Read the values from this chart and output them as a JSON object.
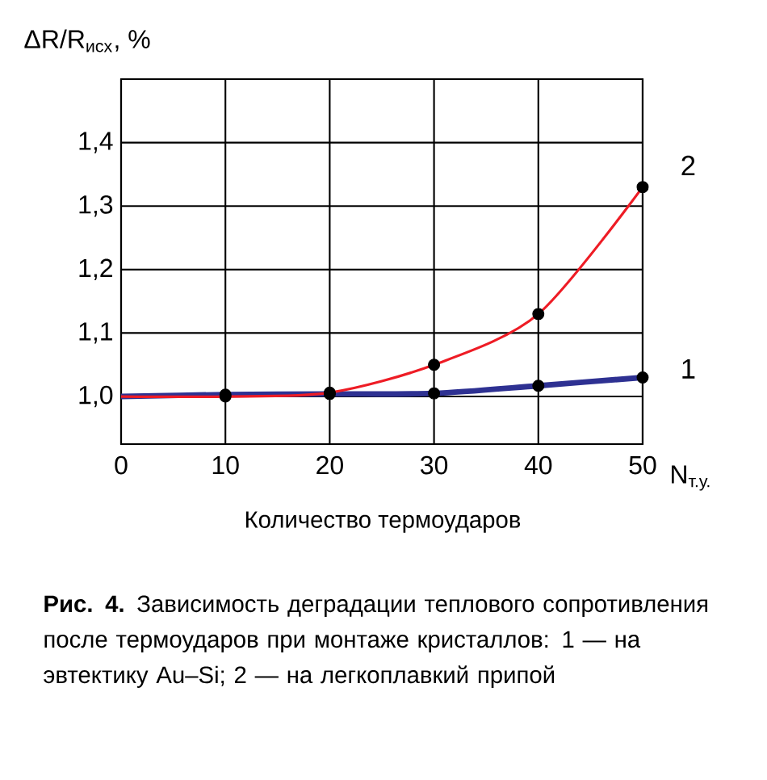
{
  "chart_data": {
    "type": "line",
    "ylabel": "ΔR/R$_{исх}$, %",
    "xlabel": "Количество термоударов",
    "annotations": [
      "N$_{т.у.}$",
      "**Рис. 4.** Зависимость деградации теплового сопротивления после термоударов при монтаже кристаллов: 1 — на эвтектику Au–Si; 2 — на легкоплавкий припой"
    ],
    "x": [
      0,
      10,
      20,
      30,
      40,
      50
    ],
    "series": [
      {
        "name": "1",
        "color": "#2e3192",
        "values": [
          1.0,
          1.003,
          1.004,
          1.005,
          1.017,
          1.03
        ]
      },
      {
        "name": "2",
        "color": "#ee1c25",
        "values": [
          1.0,
          1.0,
          1.006,
          1.05,
          1.13,
          1.33
        ]
      }
    ],
    "xlim": [
      0,
      50
    ],
    "ylim": [
      0.925,
      1.5
    ],
    "xticks": [
      0,
      10,
      20,
      30,
      40,
      50
    ],
    "yticks": [
      {
        "value": 1.0,
        "label": "1,0"
      },
      {
        "value": 1.1,
        "label": "1,1"
      },
      {
        "value": 1.2,
        "label": "1,2"
      },
      {
        "value": 1.3,
        "label": "1,3"
      },
      {
        "value": 1.4,
        "label": "1,4"
      }
    ],
    "grid": true,
    "marker": "circle",
    "line_style": "solid"
  }
}
